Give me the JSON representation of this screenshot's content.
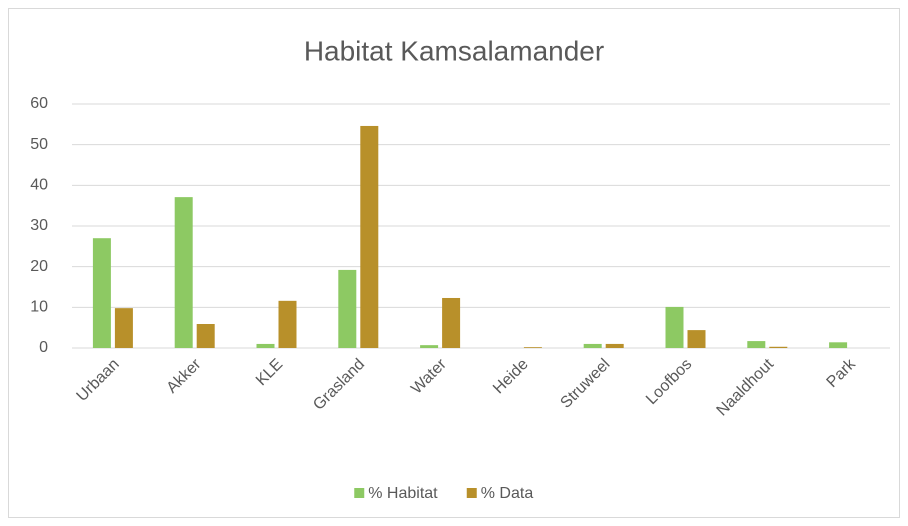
{
  "chart_data": {
    "type": "bar",
    "title": "Habitat Kamsalamander",
    "categories": [
      "Urbaan",
      "Akker",
      "KLE",
      "Grasland",
      "Water",
      "Heide",
      "Struweel",
      "Loofbos",
      "Naaldhout",
      "Park"
    ],
    "series": [
      {
        "name": "% Habitat",
        "color": "#8dc963",
        "values": [
          27,
          37.1,
          1,
          19.2,
          0.7,
          0,
          1,
          10.1,
          1.7,
          1.4
        ]
      },
      {
        "name": "% Data",
        "color": "#b8902a",
        "values": [
          9.8,
          5.9,
          11.6,
          54.6,
          12.3,
          0.2,
          1,
          4.4,
          0.3,
          0
        ]
      }
    ],
    "ylim": [
      0,
      60
    ],
    "yticks": [
      0,
      10,
      20,
      30,
      40,
      50,
      60
    ],
    "grid": true,
    "legend": "bottom"
  }
}
